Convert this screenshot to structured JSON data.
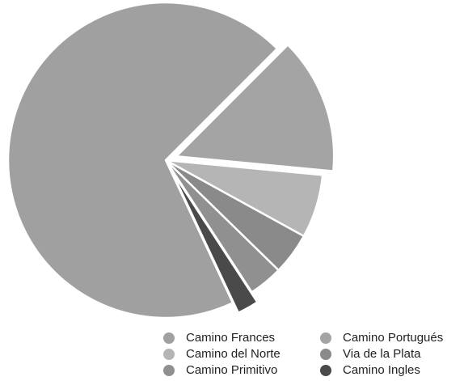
{
  "chart_data": {
    "type": "pie",
    "start_angle_deg": -45,
    "direction": "clockwise",
    "exploded_slices": [
      "Camino Portugués",
      "Camino Ingles"
    ],
    "legend_position": "bottom-right",
    "slices": [
      {
        "label": "Camino Portugués",
        "value": 14.0,
        "color": "#a4a4a4"
      },
      {
        "label": "Camino del Norte",
        "value": 6.5,
        "color": "#b5b5b5"
      },
      {
        "label": "Via de la Plata",
        "value": 4.3,
        "color": "#8a8a8a"
      },
      {
        "label": "Camino Primitivo",
        "value": 3.5,
        "color": "#909090"
      },
      {
        "label": "Camino Ingles",
        "value": 2.2,
        "color": "#4a4a4a"
      },
      {
        "label": "Camino Frances",
        "value": 69.5,
        "color": "#a0a0a0"
      }
    ]
  },
  "legend": {
    "items": [
      {
        "label": "Camino Frances",
        "color": "#a0a0a0"
      },
      {
        "label": "Camino Portugués",
        "color": "#a4a4a4"
      },
      {
        "label": "Camino del Norte",
        "color": "#b5b5b5"
      },
      {
        "label": "Via de la Plata",
        "color": "#8a8a8a"
      },
      {
        "label": "Camino Primitivo",
        "color": "#909090"
      },
      {
        "label": "Camino Ingles",
        "color": "#4a4a4a"
      }
    ]
  }
}
